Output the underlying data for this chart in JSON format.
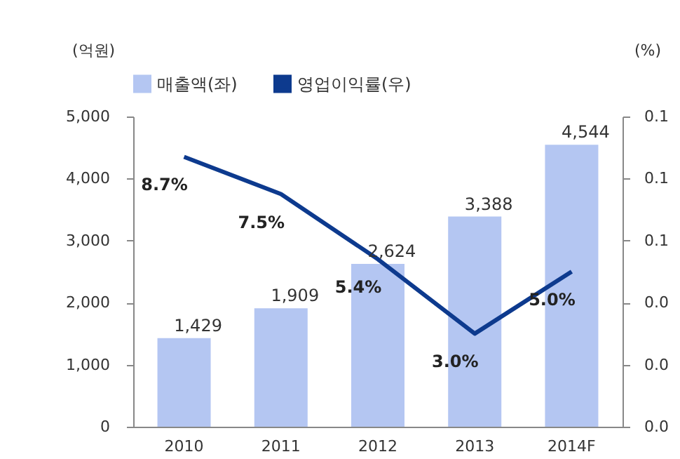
{
  "chart_data": {
    "type": "bar",
    "categories": [
      "2010",
      "2011",
      "2012",
      "2013",
      "2014F"
    ],
    "ylabel": "(억원)",
    "y2label": "(%)",
    "ylim": [
      0,
      5000
    ],
    "yticks": [
      0,
      {
        "value": 1000,
        "label": "1,000"
      },
      {
        "value": 2000,
        "label": "2,000"
      },
      {
        "value": 3000,
        "label": "3,000"
      },
      {
        "value": 4000,
        "label": "4,000"
      },
      {
        "value": 5000,
        "label": "5,000"
      }
    ],
    "y2lim": [
      0,
      0.1
    ],
    "y2ticks": [
      {
        "value": 0,
        "label": "0.0"
      },
      {
        "value": 0.02,
        "label": "0.0"
      },
      {
        "value": 0.04,
        "label": "0.0"
      },
      {
        "value": 0.06,
        "label": "0.1"
      },
      {
        "value": 0.08,
        "label": "0.1"
      },
      {
        "value": 0.1,
        "label": "0.1"
      }
    ],
    "legend": "top",
    "series": [
      {
        "name": "매출액(좌)",
        "type": "bar",
        "color": "#b4c6f2",
        "values": [
          1429,
          1909,
          2624,
          3388,
          4544
        ],
        "value_labels": [
          "1,429",
          "1,909",
          "2,624",
          "3,388",
          "4,544"
        ]
      },
      {
        "name": "영업이익률(우)",
        "type": "line",
        "axis": "y2",
        "color": "#0d3a8e",
        "values": [
          0.087,
          0.075,
          0.054,
          0.03,
          0.05
        ],
        "value_labels": [
          "8.7%",
          "7.5%",
          "5.4%",
          "3.0%",
          "5.0%"
        ]
      }
    ]
  }
}
